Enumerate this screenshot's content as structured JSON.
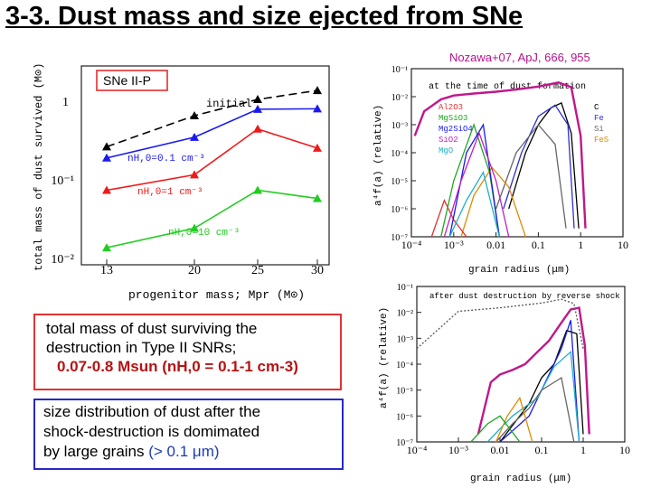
{
  "slide": {
    "title": "3-3. Dust mass and size ejected from SNe",
    "citation": "Nozawa+07, ApJ, 666, 955"
  },
  "colors": {
    "black": "#000000",
    "blue": "#1a1aee",
    "red": "#ee1a1a",
    "green": "#22cc22",
    "magenta": "#c0178c"
  },
  "left_panel": {
    "label": "SNe II-P",
    "ylabel": "total mass of dust survived (M⊙)",
    "xlabel": "progenitor mass; Mpr (M⊙)",
    "yticks": [
      "1",
      "10⁻¹",
      "10⁻²"
    ],
    "annotations": {
      "initial": "initial",
      "blue": "nH,0=0.1 cm⁻³",
      "red": "nH,0=1 cm⁻³",
      "green": "nH,0=10 cm⁻³"
    }
  },
  "right_top": {
    "title": "at the time of dust formation",
    "ylabel": "a⁴f(a) (relative)",
    "xlabel": "grain radius (μm)",
    "species_left": [
      "Al2O3",
      "MgSiO3",
      "Mg2SiO4",
      "SiO2",
      "MgO"
    ],
    "species_right": [
      "C",
      "Fe",
      "Si",
      "FeS"
    ],
    "yticks": [
      "10⁻¹",
      "10⁻²",
      "10⁻³",
      "10⁻⁴",
      "10⁻⁵",
      "10⁻⁶",
      "10⁻⁷"
    ],
    "xticks": [
      "10⁻⁴",
      "10⁻³",
      "0.01",
      "0.1",
      "1",
      "10"
    ]
  },
  "right_bottom": {
    "title": "after dust destruction by reverse shock",
    "ylabel": "a⁴f(a) (relative)",
    "xlabel": "grain radius (μm)",
    "yticks": [
      "10⁻¹",
      "10⁻²",
      "10⁻³",
      "10⁻⁴",
      "10⁻⁵",
      "10⁻⁶",
      "10⁻⁷"
    ],
    "xticks": [
      "10⁻⁴",
      "10⁻³",
      "0.01",
      "0.1",
      "1",
      "10"
    ]
  },
  "box_mass": {
    "line1": "total mass of dust surviving the",
    "line2": "destruction in Type II SNRs;",
    "line3": "0.07-0.8 Msun (nH,0 = 0.1-1 cm-3)"
  },
  "box_size": {
    "line1": "size distribution of dust after the",
    "line2": "shock-destruction is domimated",
    "line3_prefix": "by large grains",
    "line3_accent": "(> 0.1 μm)"
  },
  "chart_data": [
    {
      "type": "line",
      "title": "",
      "xlabel": "progenitor mass; Mpr (M⊙)",
      "ylabel": "total mass of dust survived (M⊙)",
      "x": [
        13,
        20,
        25,
        30
      ],
      "yscale": "log",
      "ylim": [
        0.01,
        2.5
      ],
      "series": [
        {
          "name": "initial",
          "values": [
            0.25,
            0.62,
            1.0,
            1.3
          ],
          "style": "dashed",
          "color": "#000000"
        },
        {
          "name": "nH,0=0.1 cm⁻³",
          "values": [
            0.18,
            0.33,
            0.75,
            0.76
          ],
          "color": "#1a1aee"
        },
        {
          "name": "nH,0=1 cm⁻³",
          "values": [
            0.07,
            0.11,
            0.42,
            0.24
          ],
          "color": "#ee1a1a"
        },
        {
          "name": "nH,0=10 cm⁻³",
          "values": [
            0.013,
            0.023,
            0.07,
            0.055
          ],
          "color": "#22cc22"
        }
      ]
    },
    {
      "type": "line",
      "title": "at the time of dust formation",
      "xlabel": "grain radius (μm)",
      "ylabel": "a⁴f(a) (relative)",
      "xscale": "log",
      "yscale": "log",
      "xlim": [
        0.0001,
        10
      ],
      "ylim": [
        1e-07,
        0.1
      ],
      "series": [
        {
          "name": "total",
          "color": "#c0178c",
          "x": [
            0.00012,
            0.0002,
            0.0005,
            0.001,
            0.003,
            0.01,
            0.03,
            0.1,
            0.3,
            0.6,
            1.0,
            1.3
          ],
          "values": [
            0.0004,
            0.003,
            0.008,
            0.011,
            0.013,
            0.015,
            0.018,
            0.023,
            0.032,
            0.022,
            0.0004,
            2e-07
          ]
        },
        {
          "name": "C",
          "color": "#000000",
          "x": [
            0.02,
            0.05,
            0.1,
            0.2,
            0.35,
            0.6,
            0.9
          ],
          "values": [
            1e-06,
            0.0001,
            0.001,
            0.004,
            0.006,
            0.0005,
            2e-07
          ]
        },
        {
          "name": "Fe",
          "color": "#3030d0",
          "x": [
            0.015,
            0.04,
            0.1,
            0.25,
            0.5,
            0.7
          ],
          "values": [
            1e-06,
            0.0001,
            0.002,
            0.005,
            0.001,
            2e-07
          ]
        },
        {
          "name": "Si",
          "color": "#666666",
          "x": [
            0.01,
            0.03,
            0.1,
            0.25,
            0.45
          ],
          "values": [
            1e-06,
            0.0001,
            0.001,
            0.0002,
            2e-07
          ]
        },
        {
          "name": "FeS",
          "color": "#e08a00",
          "x": [
            0.0015,
            0.003,
            0.008,
            0.02,
            0.05
          ],
          "values": [
            1e-07,
            3e-06,
            3e-05,
            6e-06,
            1e-07
          ]
        },
        {
          "name": "Al2O3",
          "color": "#e03030",
          "x": [
            0.0003,
            0.0006,
            0.001,
            0.002
          ],
          "values": [
            1e-07,
            2e-06,
            4e-07,
            1e-07
          ]
        },
        {
          "name": "MgSiO3",
          "color": "#22a622",
          "x": [
            0.0005,
            0.001,
            0.003,
            0.007,
            0.012
          ],
          "values": [
            1e-07,
            1e-05,
            0.001,
            2e-05,
            1e-07
          ]
        },
        {
          "name": "Mg2SiO4",
          "color": "#1a1aee",
          "x": [
            0.0008,
            0.002,
            0.005,
            0.012
          ],
          "values": [
            1e-07,
            0.0001,
            0.001,
            1e-07
          ]
        },
        {
          "name": "SiO2",
          "color": "#c020c0",
          "x": [
            0.0006,
            0.0015,
            0.004,
            0.01,
            0.02
          ],
          "values": [
            1e-07,
            1e-05,
            0.0005,
            1e-05,
            1e-07
          ]
        },
        {
          "name": "MgO",
          "color": "#20b0c8",
          "x": [
            0.0008,
            0.002,
            0.005,
            0.012
          ],
          "values": [
            1e-07,
            2e-06,
            2e-05,
            1e-07
          ]
        }
      ]
    },
    {
      "type": "line",
      "title": "after dust destruction by reverse shock",
      "xlabel": "grain radius (μm)",
      "ylabel": "a⁴f(a) (relative)",
      "xscale": "log",
      "yscale": "log",
      "xlim": [
        0.0001,
        10
      ],
      "ylim": [
        1e-07,
        0.1
      ],
      "series": [
        {
          "name": "total",
          "color": "#c0178c",
          "x": [
            0.003,
            0.006,
            0.01,
            0.02,
            0.04,
            0.08,
            0.15,
            0.3,
            0.5,
            0.8,
            1.1,
            1.4
          ],
          "values": [
            2e-07,
            2e-05,
            4e-05,
            6e-05,
            0.0001,
            0.0003,
            0.0008,
            0.004,
            0.013,
            0.015,
            0.0005,
            2e-07
          ]
        },
        {
          "name": "initial (dotted)",
          "color": "#555555",
          "x": [
            0.0001,
            0.001,
            0.01,
            0.1,
            0.3,
            0.6,
            1.0
          ],
          "values": [
            0.0004,
            0.011,
            0.015,
            0.023,
            0.032,
            0.022,
            0.0004
          ]
        },
        {
          "name": "C",
          "color": "#000000",
          "x": [
            0.01,
            0.05,
            0.1,
            0.2,
            0.4,
            0.7,
            1.0
          ],
          "values": [
            1e-07,
            3e-06,
            3e-05,
            0.0001,
            0.002,
            0.0015,
            2e-07
          ]
        },
        {
          "name": "Fe",
          "color": "#1a1aee",
          "x": [
            0.01,
            0.05,
            0.1,
            0.3,
            0.5,
            0.8
          ],
          "values": [
            1e-07,
            1e-06,
            1e-05,
            0.0004,
            0.005,
            1e-07
          ]
        },
        {
          "name": "MgO",
          "color": "#20b0c8",
          "x": [
            0.005,
            0.02,
            0.08,
            0.2,
            0.5,
            0.8
          ],
          "values": [
            1e-07,
            1e-06,
            5e-06,
            8e-05,
            0.0003,
            1e-07
          ]
        },
        {
          "name": "Si",
          "color": "#666666",
          "x": [
            0.008,
            0.02,
            0.05,
            0.1,
            0.3,
            0.6
          ],
          "values": [
            1e-07,
            5e-07,
            2e-06,
            1e-05,
            3e-05,
            1e-07
          ]
        },
        {
          "name": "FeS",
          "color": "#e08a00",
          "x": [
            0.008,
            0.015,
            0.03,
            0.06
          ],
          "values": [
            1e-07,
            1e-06,
            5e-06,
            1e-07
          ]
        },
        {
          "name": "Mg2SiO4",
          "color": "#22a622",
          "x": [
            0.002,
            0.005,
            0.01,
            0.03
          ],
          "values": [
            1e-07,
            5e-07,
            1e-06,
            1e-07
          ]
        }
      ]
    }
  ]
}
